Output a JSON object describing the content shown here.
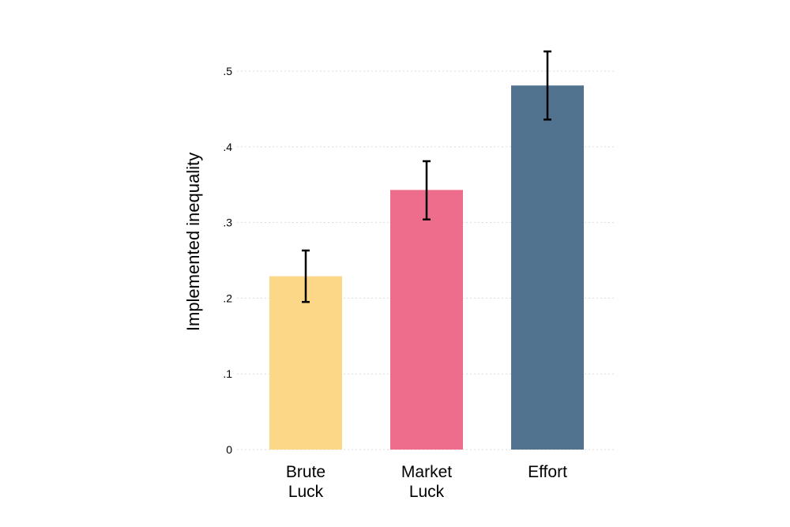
{
  "chart_data": {
    "type": "bar",
    "title": "",
    "xlabel": "",
    "ylabel": "Implemented inequality",
    "categories": [
      [
        "Brute",
        "Luck"
      ],
      [
        "Market",
        "Luck"
      ],
      [
        "Effort"
      ]
    ],
    "values": [
      0.229,
      0.343,
      0.481
    ],
    "error_low": [
      0.195,
      0.304,
      0.436
    ],
    "error_high": [
      0.263,
      0.381,
      0.526
    ],
    "colors": [
      "#fcd788",
      "#ee6d8d",
      "#51738f"
    ],
    "ylim": [
      0,
      0.5
    ],
    "yticks": [
      {
        "value": 0,
        "label": "0"
      },
      {
        "value": 0.1,
        "label": ".1"
      },
      {
        "value": 0.2,
        "label": ".2"
      },
      {
        "value": 0.3,
        "label": ".3"
      },
      {
        "value": 0.4,
        "label": ".4"
      },
      {
        "value": 0.5,
        "label": ".5"
      }
    ],
    "grid": true,
    "legend": "none"
  }
}
